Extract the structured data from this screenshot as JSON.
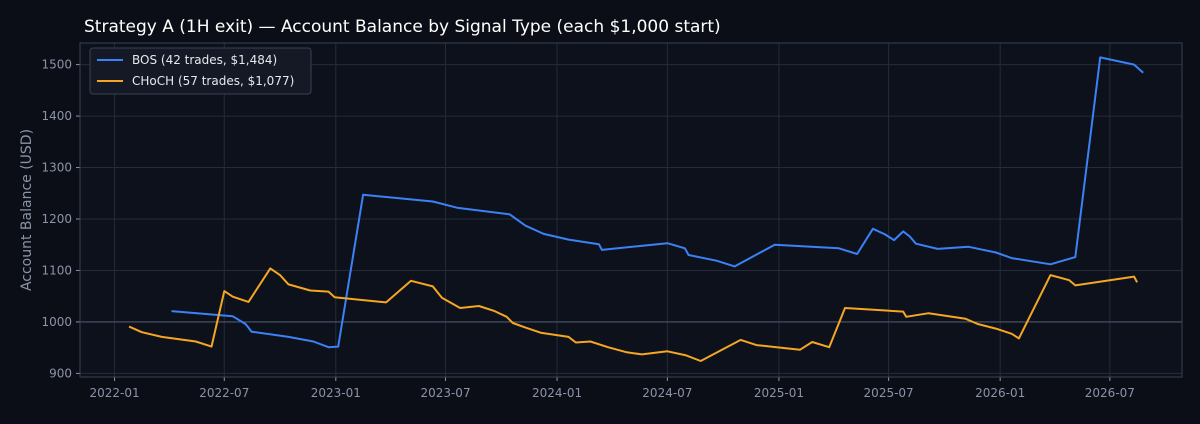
{
  "chart_data": {
    "type": "line",
    "title": "Strategy A (1H exit) — Account Balance by Signal Type (each $1,000 start)",
    "xlabel": "",
    "ylabel": "Account Balance (USD)",
    "xlim": [
      "2021-11-05",
      "2026-10-28"
    ],
    "ylim": [
      893,
      1542
    ],
    "x_ticks": [
      "2022-01",
      "2022-07",
      "2023-01",
      "2023-07",
      "2024-01",
      "2024-07",
      "2025-01",
      "2025-07",
      "2026-01",
      "2026-07"
    ],
    "y_ticks": [
      900,
      1000,
      1100,
      1200,
      1300,
      1400,
      1500
    ],
    "reference_line": 1000,
    "grid": true,
    "legend_position": "top-left",
    "series": [
      {
        "name": "BOS (42 trades, $1,484)",
        "color": "#3b82f6",
        "points": [
          [
            "2022-04-05",
            1021
          ],
          [
            "2022-07-15",
            1011
          ],
          [
            "2022-08-05",
            996
          ],
          [
            "2022-08-10",
            989
          ],
          [
            "2022-08-15",
            981
          ],
          [
            "2022-10-15",
            971
          ],
          [
            "2022-11-25",
            962
          ],
          [
            "2022-12-20",
            951
          ],
          [
            "2023-01-05",
            952
          ],
          [
            "2023-02-15",
            1247
          ],
          [
            "2023-06-10",
            1234
          ],
          [
            "2023-07-20",
            1222
          ],
          [
            "2023-10-15",
            1209
          ],
          [
            "2023-11-10",
            1187
          ],
          [
            "2023-12-10",
            1171
          ],
          [
            "2024-01-20",
            1160
          ],
          [
            "2024-03-10",
            1151
          ],
          [
            "2024-03-15",
            1140
          ],
          [
            "2024-07-01",
            1153
          ],
          [
            "2024-07-30",
            1143
          ],
          [
            "2024-08-05",
            1130
          ],
          [
            "2024-09-20",
            1119
          ],
          [
            "2024-10-20",
            1108
          ],
          [
            "2024-12-25",
            1150
          ],
          [
            "2025-04-10",
            1143
          ],
          [
            "2025-05-10",
            1132
          ],
          [
            "2025-06-05",
            1181
          ],
          [
            "2025-06-25",
            1170
          ],
          [
            "2025-07-10",
            1159
          ],
          [
            "2025-07-25",
            1176
          ],
          [
            "2025-08-05",
            1166
          ],
          [
            "2025-08-15",
            1152
          ],
          [
            "2025-09-20",
            1142
          ],
          [
            "2025-11-10",
            1146
          ],
          [
            "2025-12-25",
            1135
          ],
          [
            "2026-01-20",
            1124
          ],
          [
            "2026-03-25",
            1112
          ],
          [
            "2026-05-05",
            1126
          ],
          [
            "2026-06-15",
            1514
          ],
          [
            "2026-08-10",
            1500
          ],
          [
            "2026-08-25",
            1484
          ]
        ]
      },
      {
        "name": "CHoCH (57 trades, $1,077)",
        "color": "#f5a623",
        "points": [
          [
            "2022-01-25",
            991
          ],
          [
            "2022-02-15",
            980
          ],
          [
            "2022-03-20",
            971
          ],
          [
            "2022-05-15",
            962
          ],
          [
            "2022-06-10",
            952
          ],
          [
            "2022-07-01",
            1060
          ],
          [
            "2022-07-15",
            1049
          ],
          [
            "2022-08-10",
            1039
          ],
          [
            "2022-09-15",
            1104
          ],
          [
            "2022-10-01",
            1091
          ],
          [
            "2022-10-15",
            1073
          ],
          [
            "2022-11-20",
            1061
          ],
          [
            "2022-12-20",
            1059
          ],
          [
            "2022-12-30",
            1048
          ],
          [
            "2023-03-25",
            1038
          ],
          [
            "2023-05-05",
            1080
          ],
          [
            "2023-06-10",
            1069
          ],
          [
            "2023-06-25",
            1047
          ],
          [
            "2023-07-10",
            1037
          ],
          [
            "2023-07-25",
            1027
          ],
          [
            "2023-08-25",
            1031
          ],
          [
            "2023-09-20",
            1021
          ],
          [
            "2023-10-10",
            1010
          ],
          [
            "2023-10-20",
            998
          ],
          [
            "2023-11-10",
            989
          ],
          [
            "2023-12-05",
            979
          ],
          [
            "2024-01-20",
            971
          ],
          [
            "2024-02-01",
            960
          ],
          [
            "2024-02-25",
            962
          ],
          [
            "2024-03-25",
            951
          ],
          [
            "2024-04-25",
            941
          ],
          [
            "2024-05-20",
            937
          ],
          [
            "2024-07-01",
            943
          ],
          [
            "2024-08-01",
            935
          ],
          [
            "2024-08-25",
            924
          ],
          [
            "2024-10-30",
            965
          ],
          [
            "2024-11-25",
            955
          ],
          [
            "2025-01-05",
            950
          ],
          [
            "2025-02-05",
            946
          ],
          [
            "2025-02-25",
            961
          ],
          [
            "2025-03-25",
            951
          ],
          [
            "2025-04-20",
            1027
          ],
          [
            "2025-07-25",
            1020
          ],
          [
            "2025-07-30",
            1010
          ],
          [
            "2025-09-05",
            1017
          ],
          [
            "2025-11-05",
            1006
          ],
          [
            "2025-11-25",
            996
          ],
          [
            "2025-12-25",
            987
          ],
          [
            "2026-01-20",
            977
          ],
          [
            "2026-02-01",
            968
          ],
          [
            "2026-03-25",
            1091
          ],
          [
            "2026-04-25",
            1081
          ],
          [
            "2026-05-05",
            1071
          ],
          [
            "2026-08-10",
            1088
          ],
          [
            "2026-08-15",
            1077
          ]
        ]
      }
    ]
  }
}
